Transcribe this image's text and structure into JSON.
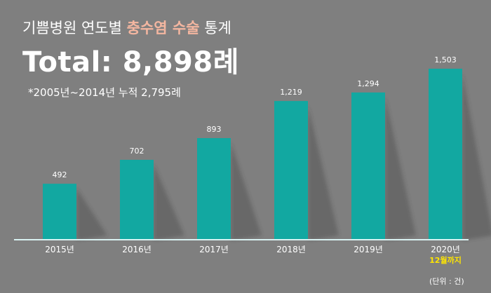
{
  "header": {
    "title_prefix": "기쁨병원 연도별",
    "title_highlight": "충수염 수술",
    "title_suffix": "통계",
    "total": "Total: 8,898례",
    "cumulative_note": "*2005년~2014년 누적 2,795례",
    "unit_note": "(단위 : 건)"
  },
  "colors": {
    "background": "#7f7f7f",
    "bar": "#12a8a1",
    "highlight_text": "#f4b6a0",
    "sublabel": "#ffe600"
  },
  "chart_data": {
    "type": "bar",
    "categories": [
      "2015년",
      "2016년",
      "2017년",
      "2018년",
      "2019년",
      "2020년"
    ],
    "values": [
      492,
      702,
      893,
      1219,
      1294,
      1503
    ],
    "value_labels": [
      "492",
      "702",
      "893",
      "1,219",
      "1,294",
      "1,503"
    ],
    "category_sublabels": [
      "",
      "",
      "",
      "",
      "",
      "12월까지"
    ],
    "title": "기쁨병원 연도별 충수염 수술 통계",
    "xlabel": "",
    "ylabel": "",
    "ylim": [
      0,
      1503
    ],
    "grid": false,
    "legend": "none"
  }
}
